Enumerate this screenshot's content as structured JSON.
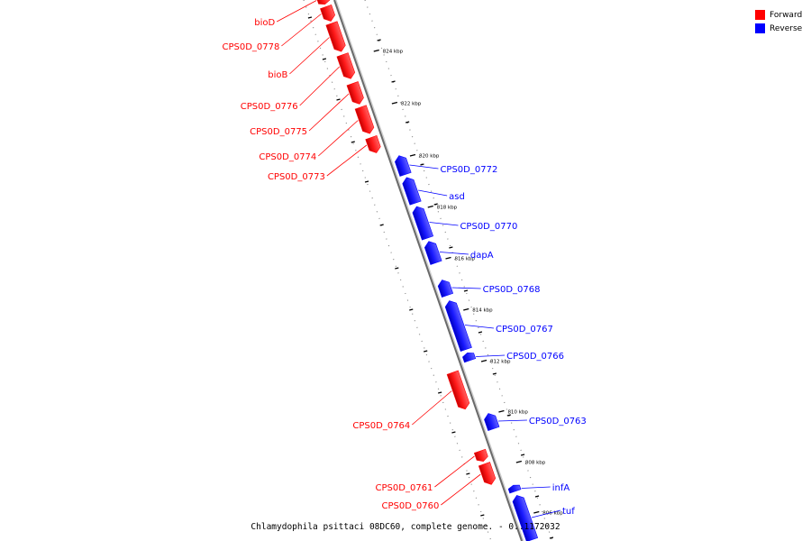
{
  "caption": "Chlamydophila psittaci 08DC60, complete genome. - 0..1172032",
  "legend": {
    "forward_label": "Forward",
    "reverse_label": "Reverse",
    "forward_color": "#ff0000",
    "reverse_color": "#0000ff"
  },
  "ruler_ticks": [
    {
      "label": "824 kbp"
    },
    {
      "label": "822 kbp"
    },
    {
      "label": "820 kbp"
    },
    {
      "label": "818 kbp"
    },
    {
      "label": "816 kbp"
    },
    {
      "label": "814 kbp"
    },
    {
      "label": "812 kbp"
    },
    {
      "label": "810 kbp"
    },
    {
      "label": "808 kbp"
    },
    {
      "label": "806 kbp"
    }
  ],
  "genes": [
    {
      "name": "bioD",
      "strand": "forward"
    },
    {
      "name": "CPS0D_0778",
      "strand": "forward"
    },
    {
      "name": "bioB",
      "strand": "forward"
    },
    {
      "name": "CPS0D_0776",
      "strand": "forward"
    },
    {
      "name": "CPS0D_0775",
      "strand": "forward"
    },
    {
      "name": "CPS0D_0774",
      "strand": "forward"
    },
    {
      "name": "CPS0D_0773",
      "strand": "forward"
    },
    {
      "name": "CPS0D_0772",
      "strand": "reverse"
    },
    {
      "name": "asd",
      "strand": "reverse"
    },
    {
      "name": "CPS0D_0770",
      "strand": "reverse"
    },
    {
      "name": "dapA",
      "strand": "reverse"
    },
    {
      "name": "CPS0D_0768",
      "strand": "reverse"
    },
    {
      "name": "CPS0D_0767",
      "strand": "reverse"
    },
    {
      "name": "CPS0D_0766",
      "strand": "reverse"
    },
    {
      "name": "CPS0D_0764",
      "strand": "forward"
    },
    {
      "name": "CPS0D_0763",
      "strand": "reverse"
    },
    {
      "name": "CPS0D_0761",
      "strand": "forward"
    },
    {
      "name": "CPS0D_0760",
      "strand": "forward"
    },
    {
      "name": "infA",
      "strand": "reverse"
    },
    {
      "name": "tuf",
      "strand": "reverse"
    }
  ]
}
